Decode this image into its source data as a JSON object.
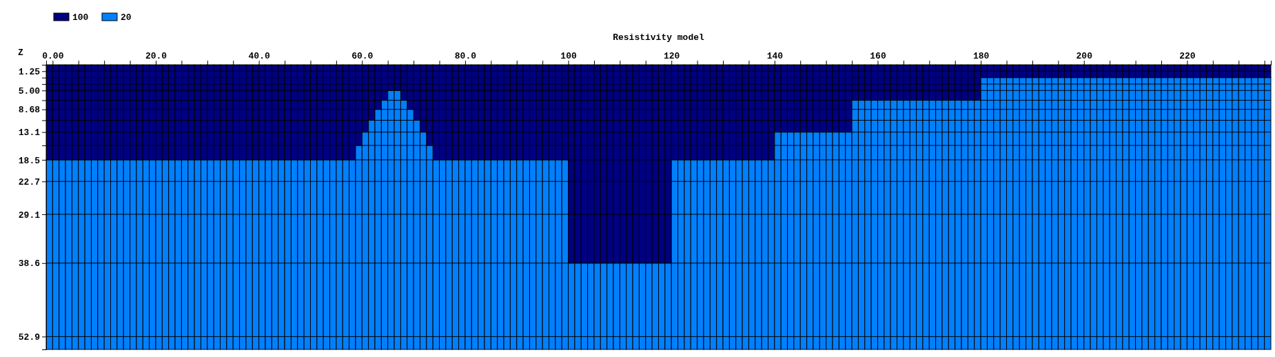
{
  "chart_data": {
    "type": "bar",
    "stacked": true,
    "title": "Resistivity model",
    "ylabel": "Z",
    "legend": "top left",
    "grid": "y",
    "xlim": [
      -1.25,
      236.25
    ],
    "xticks": [
      {
        "value": 0,
        "label": "0.00"
      },
      {
        "value": 5,
        "label": null
      },
      {
        "value": 10,
        "label": null
      },
      {
        "value": 15,
        "label": null
      },
      {
        "value": 20,
        "label": "20.0"
      },
      {
        "value": 25,
        "label": null
      },
      {
        "value": 30,
        "label": null
      },
      {
        "value": 35,
        "label": null
      },
      {
        "value": 40,
        "label": "40.0"
      },
      {
        "value": 45,
        "label": null
      },
      {
        "value": 50,
        "label": null
      },
      {
        "value": 55,
        "label": null
      },
      {
        "value": 60,
        "label": "60.0"
      },
      {
        "value": 65,
        "label": null
      },
      {
        "value": 70,
        "label": null
      },
      {
        "value": 75,
        "label": null
      },
      {
        "value": 80,
        "label": "80.0"
      },
      {
        "value": 85,
        "label": null
      },
      {
        "value": 90,
        "label": null
      },
      {
        "value": 95,
        "label": null
      },
      100,
      {
        "value": 105,
        "label": null
      },
      {
        "value": 110,
        "label": null
      },
      {
        "value": 115,
        "label": null
      },
      120,
      {
        "value": 125,
        "label": null
      },
      {
        "value": 130,
        "label": null
      },
      {
        "value": 135,
        "label": null
      },
      140,
      {
        "value": 145,
        "label": null
      },
      {
        "value": 150,
        "label": null
      },
      {
        "value": 155,
        "label": null
      },
      160,
      {
        "value": 165,
        "label": null
      },
      {
        "value": 170,
        "label": null
      },
      {
        "value": 175,
        "label": null
      },
      180,
      {
        "value": 185,
        "label": null
      },
      {
        "value": 190,
        "label": null
      },
      {
        "value": 195,
        "label": null
      },
      200,
      {
        "value": 205,
        "label": null
      },
      {
        "value": 210,
        "label": null
      },
      {
        "value": 215,
        "label": null
      },
      220,
      {
        "value": 225,
        "label": null
      },
      {
        "value": 230,
        "label": null
      },
      {
        "value": 235,
        "label": null
      }
    ],
    "ylim": [
      55.4,
      0
    ],
    "yticks": [
      1.25,
      {
        "value": 2.5,
        "label": null
      },
      {
        "value": 3.75,
        "label": null
      },
      {
        "value": 5,
        "label": "5.00"
      },
      {
        "value": 6.9,
        "label": null
      },
      8.68,
      {
        "value": 10.8,
        "label": null
      },
      13.1,
      {
        "value": 15.7,
        "label": null
      },
      18.5,
      22.7,
      29.1,
      38.6,
      52.9
    ],
    "x": [
      -0.625,
      0.625,
      1.875,
      3.125,
      4.375,
      5.625,
      6.875,
      8.125,
      9.375,
      10.625,
      11.875,
      13.125,
      14.375,
      15.625,
      16.875,
      18.125,
      19.375,
      20.625,
      21.875,
      23.125,
      24.375,
      25.625,
      26.875,
      28.125,
      29.375,
      30.625,
      31.875,
      33.125,
      34.375,
      35.625,
      36.875,
      38.125,
      39.375,
      40.625,
      41.875,
      43.125,
      44.375,
      45.625,
      46.875,
      48.125,
      49.375,
      50.625,
      51.875,
      53.125,
      54.375,
      55.625,
      56.875,
      58.125,
      59.375,
      60.625,
      61.875,
      63.125,
      64.375,
      65.625,
      66.875,
      68.125,
      69.375,
      70.625,
      71.875,
      73.125,
      74.375,
      75.625,
      76.875,
      78.125,
      79.375,
      80.625,
      81.875,
      83.125,
      84.375,
      85.625,
      86.875,
      88.125,
      89.375,
      90.625,
      91.875,
      93.125,
      94.375,
      95.625,
      96.875,
      98.125,
      99.375,
      100.625,
      101.875,
      103.125,
      104.375,
      105.625,
      106.875,
      108.125,
      109.375,
      110.625,
      111.875,
      113.125,
      114.375,
      115.625,
      116.875,
      118.125,
      119.375,
      120.625,
      121.875,
      123.125,
      124.375,
      125.625,
      126.875,
      128.125,
      129.375,
      130.625,
      131.875,
      133.125,
      134.375,
      135.625,
      136.875,
      138.125,
      139.375,
      140.625,
      141.875,
      143.125,
      144.375,
      145.625,
      146.875,
      148.125,
      149.375,
      150.625,
      151.875,
      153.125,
      154.375,
      155.625,
      156.875,
      158.125,
      159.375,
      160.625,
      161.875,
      163.125,
      164.375,
      165.625,
      166.875,
      168.125,
      169.375,
      170.625,
      171.875,
      173.125,
      174.375,
      175.625,
      176.875,
      178.125,
      179.375,
      180.625,
      181.875,
      183.125,
      184.375,
      185.625,
      186.875,
      188.125,
      189.375,
      190.625,
      191.875,
      193.125,
      194.375,
      195.625,
      196.875,
      198.125,
      199.375,
      200.625,
      201.875,
      203.125,
      204.375,
      205.625,
      206.875,
      208.125,
      209.375,
      210.625,
      211.875,
      213.125,
      214.375,
      215.625,
      216.875,
      218.125,
      219.375,
      220.625,
      221.875,
      223.125,
      224.375,
      225.625,
      226.875,
      228.125,
      229.375,
      230.625,
      231.875,
      233.125,
      234.375,
      235.625
    ],
    "series": [
      {
        "name": "100",
        "color": "#000080",
        "values": [
          18.5,
          18.5,
          18.5,
          18.5,
          18.5,
          18.5,
          18.5,
          18.5,
          18.5,
          18.5,
          18.5,
          18.5,
          18.5,
          18.5,
          18.5,
          18.5,
          18.5,
          18.5,
          18.5,
          18.5,
          18.5,
          18.5,
          18.5,
          18.5,
          18.5,
          18.5,
          18.5,
          18.5,
          18.5,
          18.5,
          18.5,
          18.5,
          18.5,
          18.5,
          18.5,
          18.5,
          18.5,
          18.5,
          18.5,
          18.5,
          18.5,
          18.5,
          18.5,
          18.5,
          18.5,
          18.5,
          18.5,
          18.5,
          15.7,
          13.1,
          10.8,
          8.68,
          6.9,
          5,
          5,
          6.9,
          8.68,
          10.8,
          13.1,
          15.7,
          18.5,
          18.5,
          18.5,
          18.5,
          18.5,
          18.5,
          18.5,
          18.5,
          18.5,
          18.5,
          18.5,
          18.5,
          18.5,
          18.5,
          18.5,
          18.5,
          18.5,
          18.5,
          18.5,
          18.5,
          18.5,
          38.6,
          38.6,
          38.6,
          38.6,
          38.6,
          38.6,
          38.6,
          38.6,
          38.6,
          38.6,
          38.6,
          38.6,
          38.6,
          38.6,
          38.6,
          38.6,
          18.5,
          18.5,
          18.5,
          18.5,
          18.5,
          18.5,
          18.5,
          18.5,
          18.5,
          18.5,
          18.5,
          18.5,
          18.5,
          18.5,
          18.5,
          18.5,
          13.1,
          13.1,
          13.1,
          13.1,
          13.1,
          13.1,
          13.1,
          13.1,
          13.1,
          13.1,
          13.1,
          13.1,
          6.9,
          6.9,
          6.9,
          6.9,
          6.9,
          6.9,
          6.9,
          6.9,
          6.9,
          6.9,
          6.9,
          6.9,
          6.9,
          6.9,
          6.9,
          6.9,
          6.9,
          6.9,
          6.9,
          6.9,
          2.5,
          2.5,
          2.5,
          2.5,
          2.5,
          2.5,
          2.5,
          2.5,
          2.5,
          2.5,
          2.5,
          2.5,
          2.5,
          2.5,
          2.5,
          2.5,
          2.5,
          2.5,
          2.5,
          2.5,
          2.5,
          2.5,
          2.5,
          2.5,
          2.5,
          2.5,
          2.5,
          2.5,
          2.5,
          2.5,
          2.5,
          2.5,
          2.5,
          2.5,
          2.5,
          2.5,
          2.5,
          2.5,
          2.5,
          2.5,
          2.5,
          2.5,
          2.5,
          2.5,
          2.5
        ]
      },
      {
        "name": "20",
        "color": "#0080ff",
        "values": [
          36.9,
          36.9,
          36.9,
          36.9,
          36.9,
          36.9,
          36.9,
          36.9,
          36.9,
          36.9,
          36.9,
          36.9,
          36.9,
          36.9,
          36.9,
          36.9,
          36.9,
          36.9,
          36.9,
          36.9,
          36.9,
          36.9,
          36.9,
          36.9,
          36.9,
          36.9,
          36.9,
          36.9,
          36.9,
          36.9,
          36.9,
          36.9,
          36.9,
          36.9,
          36.9,
          36.9,
          36.9,
          36.9,
          36.9,
          36.9,
          36.9,
          36.9,
          36.9,
          36.9,
          36.9,
          36.9,
          36.9,
          36.9,
          39.7,
          42.3,
          44.6,
          46.72,
          48.5,
          50.4,
          50.4,
          48.5,
          46.72,
          44.6,
          42.3,
          39.7,
          36.9,
          36.9,
          36.9,
          36.9,
          36.9,
          36.9,
          36.9,
          36.9,
          36.9,
          36.9,
          36.9,
          36.9,
          36.9,
          36.9,
          36.9,
          36.9,
          36.9,
          36.9,
          36.9,
          36.9,
          36.9,
          16.8,
          16.8,
          16.8,
          16.8,
          16.8,
          16.8,
          16.8,
          16.8,
          16.8,
          16.8,
          16.8,
          16.8,
          16.8,
          16.8,
          16.8,
          16.8,
          36.9,
          36.9,
          36.9,
          36.9,
          36.9,
          36.9,
          36.9,
          36.9,
          36.9,
          36.9,
          36.9,
          36.9,
          36.9,
          36.9,
          36.9,
          36.9,
          42.3,
          42.3,
          42.3,
          42.3,
          42.3,
          42.3,
          42.3,
          42.3,
          42.3,
          42.3,
          42.3,
          42.3,
          48.5,
          48.5,
          48.5,
          48.5,
          48.5,
          48.5,
          48.5,
          48.5,
          48.5,
          48.5,
          48.5,
          48.5,
          48.5,
          48.5,
          48.5,
          48.5,
          48.5,
          48.5,
          48.5,
          48.5,
          52.9,
          52.9,
          52.9,
          52.9,
          52.9,
          52.9,
          52.9,
          52.9,
          52.9,
          52.9,
          52.9,
          52.9,
          52.9,
          52.9,
          52.9,
          52.9,
          52.9,
          52.9,
          52.9,
          52.9,
          52.9,
          52.9,
          52.9,
          52.9,
          52.9,
          52.9,
          52.9,
          52.9,
          52.9,
          52.9,
          52.9,
          52.9,
          52.9,
          52.9,
          52.9,
          52.9,
          52.9,
          52.9,
          52.9,
          52.9,
          52.9,
          52.9,
          52.9,
          52.9,
          52.9
        ]
      }
    ]
  }
}
